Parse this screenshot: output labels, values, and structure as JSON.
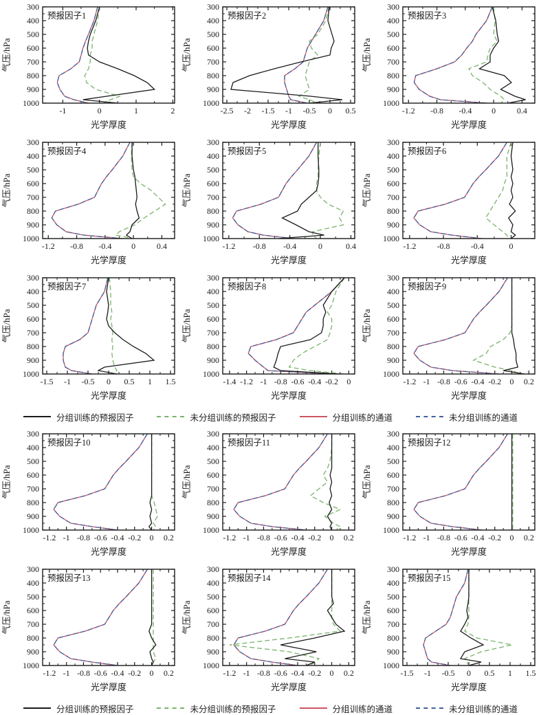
{
  "legend": {
    "items": [
      {
        "key": "grouped_predictor",
        "label": "分组训练的预报因子",
        "color": "#1a1a1a",
        "dash": "solid"
      },
      {
        "key": "ungrouped_predictor",
        "label": "未分组训练的预报因子",
        "color": "#79b369",
        "dash": "dashed"
      },
      {
        "key": "grouped_channel",
        "label": "分组训练的通道",
        "color": "#cc5560",
        "dash": "solid"
      },
      {
        "key": "ungrouped_channel",
        "label": "未分组训练的通道",
        "color": "#41609f",
        "dash": "dashed"
      }
    ]
  },
  "chart_data": {
    "type": "line",
    "xlabel": "光学厚度",
    "ylabel": "气压/hPa",
    "ylim": [
      300,
      1000
    ],
    "y_inverted": true,
    "yticks": [
      300,
      400,
      500,
      600,
      700,
      800,
      900,
      1000
    ],
    "pressure_levels": [
      300,
      400,
      500,
      550,
      600,
      650,
      700,
      750,
      800,
      850,
      900,
      950,
      975,
      1000
    ],
    "charts": [
      {
        "title": "预报因子1",
        "xlim": [
          -1.55,
          2.05
        ],
        "xticks": [
          -1,
          0,
          1,
          2
        ],
        "series": {
          "grouped_channel": [
            -0.05,
            -0.15,
            -0.3,
            -0.38,
            -0.45,
            -0.5,
            -0.55,
            -0.78,
            -1.1,
            -1.15,
            -1.08,
            -0.95,
            -0.7,
            -0.3
          ],
          "ungrouped_channel": "same_as_grouped_channel",
          "ungrouped_predictor": [
            0,
            -0.05,
            -0.15,
            -0.2,
            -0.2,
            -0.25,
            -0.25,
            -0.3,
            -0.4,
            -0.35,
            -0.1,
            0.55,
            0.3,
            0.1
          ],
          "grouped_predictor": [
            0,
            -0.1,
            -0.25,
            -0.3,
            -0.33,
            -0.3,
            0.0,
            0.5,
            0.95,
            1.3,
            1.5,
            0.2,
            -0.45,
            0.5
          ]
        }
      },
      {
        "title": "预报因子2",
        "xlim": [
          -2.6,
          0.6
        ],
        "xticks": [
          -2.5,
          -2,
          -1.5,
          -1,
          -0.5,
          0,
          0.5
        ],
        "series": {
          "grouped_channel": [
            -0.05,
            -0.15,
            -0.35,
            -0.45,
            -0.55,
            -0.6,
            -0.65,
            -0.85,
            -1.1,
            -1.1,
            -1.05,
            -1.0,
            -0.95,
            -0.55
          ],
          "ungrouped_channel": "same_as_grouped_channel",
          "ungrouped_predictor": [
            -0.02,
            -0.1,
            -0.3,
            -0.5,
            -0.45,
            -0.3,
            -0.5,
            -0.55,
            -0.6,
            -0.55,
            -0.5,
            -0.75,
            -0.5,
            -0.3
          ],
          "grouped_predictor": [
            -0.02,
            -0.05,
            0.05,
            0.1,
            0.03,
            0.0,
            -0.7,
            -1.35,
            -1.95,
            -2.35,
            -2.4,
            -0.47,
            0.3,
            -0.5
          ]
        }
      },
      {
        "title": "预报因子3",
        "xlim": [
          -1.28,
          0.58
        ],
        "xticks": [
          -1.2,
          -0.8,
          -0.4,
          0,
          0.4
        ],
        "series": {
          "grouped_channel": [
            -0.02,
            -0.1,
            -0.25,
            -0.3,
            -0.38,
            -0.45,
            -0.55,
            -0.8,
            -1.1,
            -1.12,
            -1.05,
            -0.9,
            -0.75,
            -0.1
          ],
          "ungrouped_channel": "same_as_grouped_channel",
          "ungrouped_predictor": [
            0,
            0.02,
            0.0,
            0.05,
            -0.05,
            -0.08,
            -0.1,
            -0.35,
            -0.3,
            -0.15,
            -0.05,
            0.1,
            0.15,
            0.1
          ],
          "grouped_predictor": [
            -0.02,
            0.03,
            0.05,
            0.07,
            0.0,
            -0.05,
            -0.05,
            -0.2,
            0.15,
            0.25,
            0.1,
            0.3,
            0.45,
            0.2
          ]
        }
      },
      {
        "title": "预报因子4",
        "xlim": [
          -1.28,
          0.58
        ],
        "xticks": [
          -1.2,
          -0.8,
          -0.4,
          0,
          0.4
        ],
        "series": {
          "grouped_channel": [
            -0.05,
            -0.15,
            -0.3,
            -0.38,
            -0.45,
            -0.5,
            -0.55,
            -0.78,
            -1.1,
            -1.15,
            -1.08,
            -0.95,
            -0.7,
            -0.15
          ],
          "ungrouped_channel": "same_as_grouped_channel",
          "ungrouped_predictor": [
            -0.02,
            -0.03,
            -0.02,
            0.0,
            0.1,
            0.25,
            0.35,
            0.45,
            0.3,
            0.15,
            0.02,
            -0.2,
            -0.25,
            0.0
          ],
          "grouped_predictor": [
            -0.02,
            -0.02,
            0.0,
            0.02,
            0.03,
            0.04,
            0.05,
            0.03,
            0.05,
            0.08,
            -0.02,
            -0.05,
            -0.1,
            -0.02
          ]
        }
      },
      {
        "title": "预报因子5",
        "xlim": [
          -1.28,
          0.45
        ],
        "xticks": [
          -1.2,
          -0.8,
          -0.4,
          0,
          0.4
        ],
        "series": {
          "grouped_channel": [
            -0.05,
            -0.15,
            -0.3,
            -0.38,
            -0.45,
            -0.5,
            -0.55,
            -0.78,
            -1.1,
            -1.15,
            -1.08,
            -0.95,
            -0.75,
            -0.35
          ],
          "ungrouped_channel": "same_as_grouped_channel",
          "ungrouped_predictor": [
            0,
            -0.02,
            -0.03,
            -0.03,
            -0.05,
            -0.05,
            0.0,
            0.1,
            0.3,
            0.25,
            0.3,
            -0.1,
            -0.1,
            -0.05
          ],
          "grouped_predictor": [
            -0.03,
            -0.03,
            -0.02,
            -0.02,
            -0.03,
            -0.05,
            -0.15,
            -0.25,
            -0.3,
            -0.5,
            -0.32,
            -0.15,
            0.05,
            -0.55
          ]
        }
      },
      {
        "title": "预报因子6",
        "xlim": [
          -1.28,
          0.28
        ],
        "xticks": [
          -1.2,
          -0.8,
          -0.4,
          0
        ],
        "series": {
          "grouped_channel": [
            -0.05,
            -0.15,
            -0.3,
            -0.38,
            -0.45,
            -0.5,
            -0.55,
            -0.78,
            -1.1,
            -1.15,
            -1.08,
            -0.95,
            -0.7,
            -0.35
          ],
          "ungrouped_channel": "same_as_grouped_channel",
          "ungrouped_predictor": [
            0,
            -0.05,
            -0.05,
            -0.05,
            -0.08,
            -0.1,
            -0.15,
            -0.2,
            -0.25,
            -0.3,
            -0.2,
            -0.1,
            -0.05,
            -0.02
          ],
          "grouped_predictor": [
            0.02,
            0.0,
            0.02,
            0.0,
            0.02,
            0.0,
            0.02,
            -0.02,
            0.05,
            -0.03,
            0.02,
            0.0,
            0.05,
            0.0
          ]
        }
      },
      {
        "title": "预报因子7",
        "xlim": [
          -1.6,
          1.6
        ],
        "xticks": [
          -1.5,
          -1,
          -0.5,
          0,
          0.5,
          1,
          1.5
        ],
        "series": {
          "grouped_channel": [
            -0.02,
            -0.1,
            -0.3,
            -0.35,
            -0.4,
            -0.45,
            -0.5,
            -0.7,
            -1.05,
            -1.1,
            -1.1,
            -1.05,
            -0.9,
            -0.4
          ],
          "ungrouped_channel": "same_as_grouped_channel",
          "ungrouped_predictor": [
            0.02,
            0.05,
            0.05,
            0.08,
            0.05,
            0.08,
            0.1,
            0.08,
            0.1,
            0.08,
            0.1,
            0.15,
            0.2,
            0.1
          ],
          "grouped_predictor": [
            0,
            -0.05,
            0.0,
            -0.02,
            -0.05,
            0.0,
            0.15,
            0.35,
            0.6,
            0.9,
            1.1,
            -0.1,
            -0.25,
            0.2
          ]
        }
      },
      {
        "title": "预报因子8",
        "xlim": [
          -1.48,
          0.07
        ],
        "xticks": [
          -1.4,
          -1.2,
          -1,
          -0.8,
          -0.6,
          -0.4,
          -0.2,
          0
        ],
        "series": {
          "grouped_channel": [
            -0.05,
            -0.2,
            -0.4,
            -0.5,
            -0.55,
            -0.6,
            -0.65,
            -0.85,
            -1.15,
            -1.18,
            -1.1,
            -1.0,
            -0.95,
            -0.2
          ],
          "ungrouped_channel": "same_as_grouped_channel",
          "ungrouped_predictor": [
            -0.05,
            -0.15,
            -0.2,
            -0.25,
            -0.2,
            -0.2,
            -0.22,
            -0.25,
            -0.4,
            -0.55,
            -0.65,
            -0.7,
            -0.45,
            -0.05
          ],
          "grouped_predictor": [
            -0.05,
            -0.2,
            -0.3,
            -0.27,
            -0.3,
            -0.3,
            -0.32,
            -0.45,
            -0.8,
            -0.83,
            -0.85,
            -0.88,
            -0.8,
            -0.1
          ]
        }
      },
      {
        "title": "预报因子9",
        "xlim": [
          -1.28,
          0.27
        ],
        "xticks": [
          -1.2,
          -1,
          -0.8,
          -0.6,
          -0.4,
          -0.2,
          0,
          0.2
        ],
        "series": {
          "grouped_channel": [
            -0.05,
            -0.15,
            -0.3,
            -0.38,
            -0.45,
            -0.5,
            -0.55,
            -0.78,
            -1.1,
            -1.15,
            -1.08,
            -0.95,
            -0.7,
            -0.15
          ],
          "ungrouped_channel": "same_as_grouped_channel",
          "ungrouped_predictor": [
            0,
            0,
            0,
            0,
            0,
            0,
            -0.02,
            -0.1,
            -0.25,
            -0.3,
            -0.45,
            -0.2,
            0.0,
            0.1
          ],
          "grouped_predictor": [
            0,
            0,
            0,
            0,
            0,
            0,
            0,
            0.02,
            0.03,
            0.05,
            0.05,
            0.07,
            -0.1,
            0.15
          ]
        }
      },
      {
        "title": "预报因子10",
        "xlim": [
          -1.28,
          0.27
        ],
        "xticks": [
          -1.2,
          -1,
          -0.8,
          -0.6,
          -0.4,
          -0.2,
          0,
          0.2
        ],
        "series": {
          "grouped_channel": [
            -0.05,
            -0.15,
            -0.3,
            -0.38,
            -0.45,
            -0.5,
            -0.55,
            -0.78,
            -1.1,
            -1.15,
            -1.08,
            -0.95,
            -0.7,
            -0.4
          ],
          "ungrouped_channel": "same_as_grouped_channel",
          "ungrouped_predictor": [
            0,
            0,
            0,
            0,
            0,
            0,
            0,
            0,
            0.03,
            0.05,
            0.07,
            0.02,
            0.05,
            0.02
          ],
          "grouped_predictor": [
            0,
            0,
            0,
            0,
            0,
            0,
            0,
            0,
            -0.02,
            0,
            -0.02,
            0,
            -0.03,
            0
          ]
        }
      },
      {
        "title": "预报因子11",
        "xlim": [
          -1.28,
          0.27
        ],
        "xticks": [
          -1.2,
          -1,
          -0.8,
          -0.6,
          -0.4,
          -0.2,
          0,
          0.2
        ],
        "series": {
          "grouped_channel": [
            -0.05,
            -0.15,
            -0.3,
            -0.38,
            -0.45,
            -0.5,
            -0.55,
            -0.78,
            -1.1,
            -1.15,
            -1.08,
            -0.95,
            -0.7,
            -0.3
          ],
          "ungrouped_channel": "same_as_grouped_channel",
          "ungrouped_predictor": [
            0,
            0,
            -0.02,
            -0.05,
            -0.1,
            -0.05,
            -0.15,
            -0.25,
            -0.1,
            0.1,
            -0.08,
            0.02,
            0.1,
            0.05
          ],
          "grouped_predictor": [
            0,
            0,
            0,
            0,
            -0.02,
            0,
            -0.02,
            0,
            -0.03,
            0,
            -0.05,
            0,
            -0.02,
            0
          ]
        }
      },
      {
        "title": "预报因子12",
        "xlim": [
          -1.28,
          0.27
        ],
        "xticks": [
          -1.2,
          -1,
          -0.8,
          -0.6,
          -0.4,
          -0.2,
          0,
          0.2
        ],
        "series": {
          "grouped_channel": [
            -0.05,
            -0.15,
            -0.3,
            -0.38,
            -0.45,
            -0.5,
            -0.55,
            -0.78,
            -1.1,
            -1.15,
            -1.08,
            -0.95,
            -0.7,
            -0.35
          ],
          "ungrouped_channel": "same_as_grouped_channel",
          "ungrouped_predictor": [
            0.01,
            0.01,
            0.01,
            0.01,
            0.01,
            0.01,
            0.01,
            0.01,
            0.01,
            0.01,
            0.01,
            0.01,
            0.01,
            0.01
          ],
          "grouped_predictor": [
            0,
            0,
            0,
            0,
            0,
            0,
            0,
            0,
            0,
            0,
            0,
            0,
            0,
            0
          ]
        }
      },
      {
        "title": "预报因子13",
        "xlim": [
          -1.28,
          0.27
        ],
        "xticks": [
          -1.2,
          -1,
          -0.8,
          -0.6,
          -0.4,
          -0.2,
          0,
          0.2
        ],
        "series": {
          "grouped_channel": [
            -0.05,
            -0.15,
            -0.3,
            -0.38,
            -0.45,
            -0.5,
            -0.55,
            -0.78,
            -1.1,
            -1.15,
            -1.08,
            -0.95,
            -0.7,
            -0.4
          ],
          "ungrouped_channel": "same_as_grouped_channel",
          "ungrouped_predictor": [
            0.02,
            0.02,
            0.02,
            0.02,
            0.02,
            0.02,
            0.02,
            0.02,
            0.02,
            0.02,
            0.02,
            0.05,
            0.02,
            0
          ],
          "grouped_predictor": [
            0,
            0,
            0,
            0,
            0,
            0,
            0,
            -0.03,
            0,
            0.05,
            -0.02,
            0,
            0.02,
            0
          ]
        }
      },
      {
        "title": "预报因子14",
        "xlim": [
          -1.28,
          0.27
        ],
        "xticks": [
          -1.2,
          -1,
          -0.8,
          -0.6,
          -0.4,
          -0.2,
          0,
          0.2
        ],
        "series": {
          "grouped_channel": [
            -0.05,
            -0.15,
            -0.3,
            -0.38,
            -0.45,
            -0.5,
            -0.55,
            -0.78,
            -1.1,
            -1.15,
            -1.08,
            -0.95,
            -0.7,
            -0.4
          ],
          "ungrouped_channel": "same_as_grouped_channel",
          "ungrouped_predictor": [
            0,
            0,
            0,
            0,
            0,
            0,
            0.02,
            0.1,
            -0.5,
            -1.2,
            -0.5,
            -0.15,
            -0.2,
            -0.25
          ],
          "grouped_predictor": [
            0,
            0,
            0,
            0.02,
            -0.05,
            0,
            0.05,
            0.15,
            -0.2,
            -0.6,
            -0.18,
            -0.55,
            -0.2,
            -0.3
          ]
        }
      },
      {
        "title": "预报因子15",
        "xlim": [
          -1.6,
          1.6
        ],
        "xticks": [
          -1.5,
          -1,
          -0.5,
          0,
          0.5,
          1,
          1.5
        ],
        "series": {
          "grouped_channel": [
            -0.02,
            -0.1,
            -0.3,
            -0.35,
            -0.4,
            -0.45,
            -0.55,
            -0.8,
            -1.05,
            -1.1,
            -1.05,
            -1.0,
            -0.9,
            -0.45
          ],
          "ungrouped_channel": "same_as_grouped_channel",
          "ungrouped_predictor": [
            0,
            0,
            0,
            0,
            0,
            0,
            -0.02,
            -0.1,
            0.2,
            1.05,
            0.3,
            -0.1,
            -0.05,
            0
          ],
          "grouped_predictor": [
            0,
            0,
            0,
            -0.02,
            -0.05,
            -0.02,
            -0.1,
            -0.2,
            0.05,
            0.35,
            -0.1,
            -0.2,
            0.3,
            0.0
          ]
        }
      }
    ]
  }
}
